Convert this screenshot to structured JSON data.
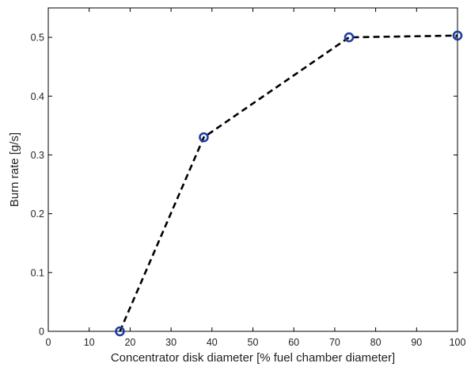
{
  "chart_data": {
    "type": "line",
    "title": "",
    "xlabel": "Concentrator disk diameter [% fuel chamber diameter]",
    "ylabel": "Burn rate [g/s]",
    "xlim": [
      0,
      100
    ],
    "ylim": [
      0,
      0.55
    ],
    "xticks": [
      0,
      10,
      20,
      30,
      40,
      50,
      60,
      70,
      80,
      90,
      100
    ],
    "yticks": [
      0,
      0.1,
      0.2,
      0.3,
      0.4,
      0.5
    ],
    "xtick_labels": [
      "0",
      "10",
      "20",
      "30",
      "40",
      "50",
      "60",
      "70",
      "80",
      "90",
      "100"
    ],
    "ytick_labels": [
      "0",
      "0.1",
      "0.2",
      "0.3",
      "0.4",
      "0.5"
    ],
    "grid": false,
    "legend": "none",
    "line_style": "dashed",
    "line_color": "#000000",
    "marker": "circle",
    "marker_color": "#1f3fa0",
    "series": [
      {
        "x": [
          17.5,
          38,
          73.5,
          100
        ],
        "y": [
          0.0,
          0.33,
          0.5,
          0.503
        ]
      }
    ]
  }
}
